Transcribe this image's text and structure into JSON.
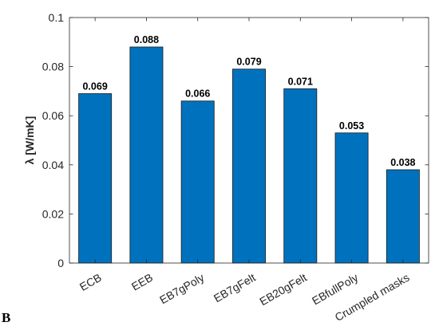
{
  "panel_label": "B",
  "colors": {
    "bar_fill": "#0072BD",
    "bar_stroke": "#1a1a1a",
    "axis": "#262626"
  },
  "chart_data": {
    "type": "bar",
    "categories": [
      "ECB",
      "EEB",
      "EB7gPoly",
      "EB7gFelt",
      "EB20gFelt",
      "EBfullPoly",
      "Crumpled masks"
    ],
    "values": [
      0.069,
      0.088,
      0.066,
      0.079,
      0.071,
      0.053,
      0.038
    ],
    "value_labels": [
      "0.069",
      "0.088",
      "0.066",
      "0.079",
      "0.071",
      "0.053",
      "0.038"
    ],
    "ylabel": "λ [W/mK]",
    "xlabel": "",
    "ylim": [
      0,
      0.1
    ],
    "yticks": [
      0,
      0.02,
      0.04,
      0.06,
      0.08,
      0.1
    ],
    "ytick_labels": [
      "0",
      "0.02",
      "0.04",
      "0.06",
      "0.08",
      "0.1"
    ],
    "grid": false,
    "xtick_rotation": -30
  }
}
